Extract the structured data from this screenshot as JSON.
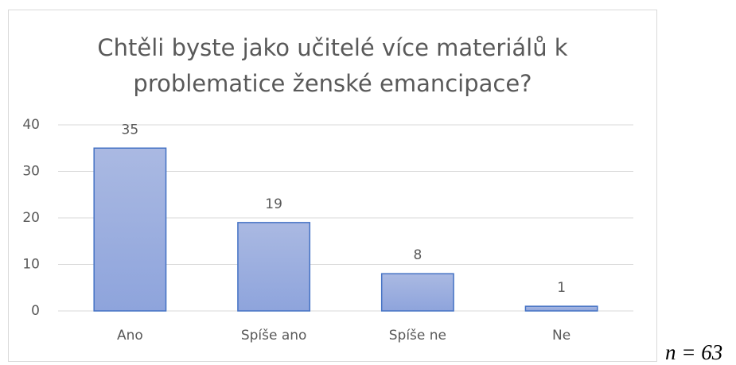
{
  "chart_data": {
    "type": "bar",
    "title": "Chtěli byste jako učitelé více materiálů k problematice ženské emancipace?",
    "categories": [
      "Ano",
      "Spíše ano",
      "Spíše ne",
      "Ne"
    ],
    "values": [
      35,
      19,
      8,
      1
    ],
    "color": "#4472c4",
    "ylim": [
      0,
      40
    ],
    "yticks": [
      0,
      10,
      20,
      30,
      40
    ],
    "grid": true,
    "annotation": "n = 63"
  }
}
